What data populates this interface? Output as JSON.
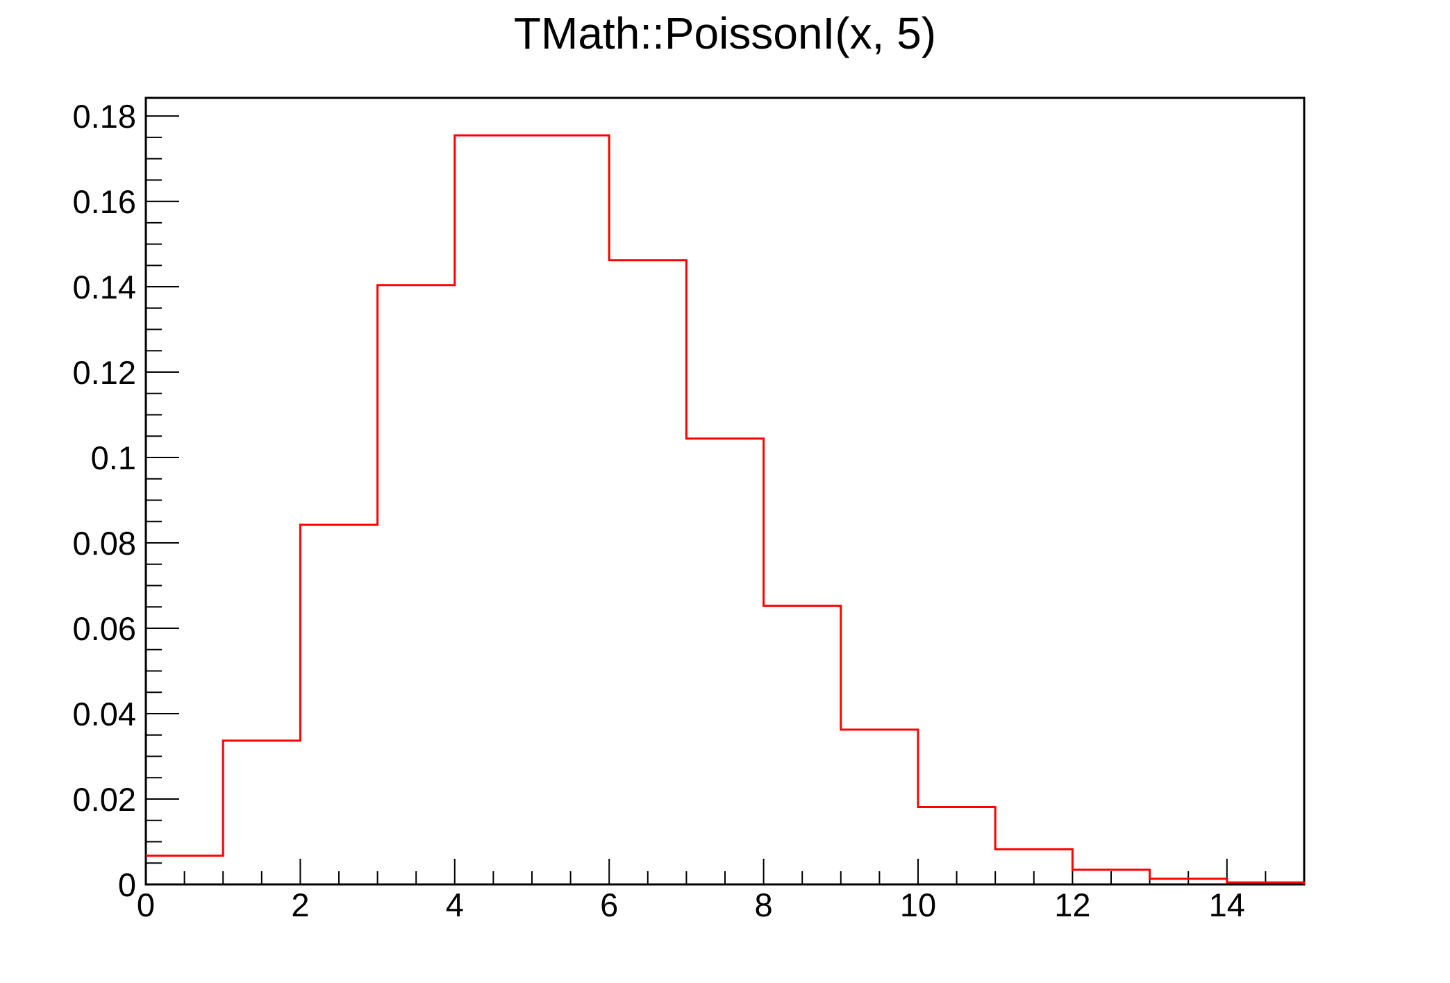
{
  "page": {
    "background_color": "#ffffff"
  },
  "chart_data": {
    "type": "line",
    "style": "step-histogram-outline",
    "title": "TMath::PoissonI(x, 5)",
    "xlabel": "",
    "ylabel": "",
    "xlim": [
      0,
      15
    ],
    "ylim": [
      0,
      0.1842407
    ],
    "grid": false,
    "legend_position": "none",
    "line_color": "#ff0000",
    "line_width": 3,
    "frame_color": "#000000",
    "frame_line_width": 3,
    "tick_line_width": 2,
    "bin_left_edges": [
      0,
      1,
      2,
      3,
      4,
      5,
      6,
      7,
      8,
      9,
      10,
      11,
      12,
      13,
      14
    ],
    "bin_width": 1,
    "values": [
      0.0067379,
      0.0336897,
      0.0842243,
      0.1403739,
      0.1754674,
      0.1754674,
      0.1462228,
      0.1044449,
      0.065278,
      0.0362656,
      0.0181328,
      0.0082422,
      0.0034342,
      0.0013208,
      0.0004717
    ],
    "x_axis": {
      "major_ticks": [
        0,
        2,
        4,
        6,
        8,
        10,
        12,
        14
      ],
      "major_labels": [
        "0",
        "2",
        "4",
        "6",
        "8",
        "10",
        "12",
        "14"
      ],
      "minor_step": 0.5,
      "label_font_size": 47
    },
    "y_axis": {
      "major_ticks": [
        0,
        0.02,
        0.04,
        0.06,
        0.08,
        0.1,
        0.12,
        0.14,
        0.16,
        0.18
      ],
      "major_labels": [
        "0",
        "0.02",
        "0.04",
        "0.06",
        "0.08",
        "0.1",
        "0.12",
        "0.14",
        "0.16",
        "0.18"
      ],
      "minor_step": 0.005,
      "label_font_size": 47
    }
  }
}
